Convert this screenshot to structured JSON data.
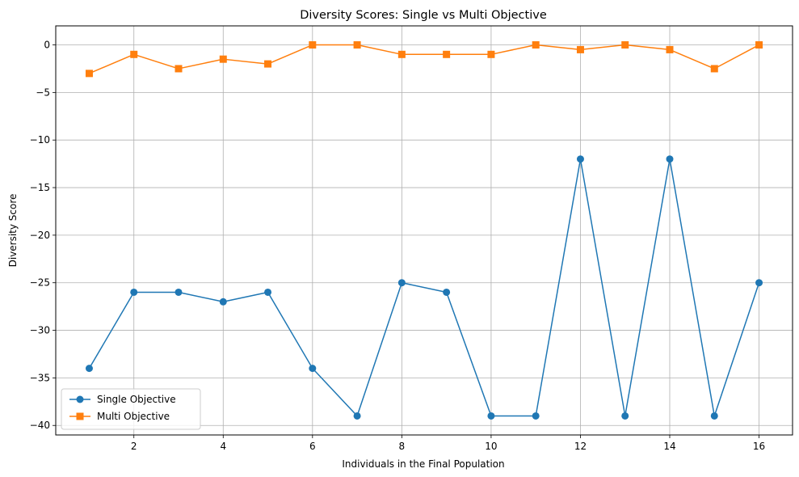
{
  "chart_data": {
    "type": "line",
    "title": "Diversity Scores: Single vs Multi Objective",
    "xlabel": "Individuals in the Final Population",
    "ylabel": "Diversity Score",
    "x": [
      1,
      2,
      3,
      4,
      5,
      6,
      7,
      8,
      9,
      10,
      11,
      12,
      13,
      14,
      15,
      16
    ],
    "xlim": [
      0.25,
      16.75
    ],
    "ylim": [
      -41,
      2
    ],
    "xticks": [
      2,
      4,
      6,
      8,
      10,
      12,
      14,
      16
    ],
    "yticks": [
      0,
      -5,
      -10,
      -15,
      -20,
      -25,
      -30,
      -35,
      -40
    ],
    "xtick_labels": [
      "2",
      "4",
      "6",
      "8",
      "10",
      "12",
      "14",
      "16"
    ],
    "ytick_labels": [
      "0",
      "−5",
      "−10",
      "−15",
      "−20",
      "−25",
      "−30",
      "−35",
      "−40"
    ],
    "grid": true,
    "legend_position": "lower-left",
    "series": [
      {
        "name": "Single Objective",
        "color": "#1f77b4",
        "marker": "circle",
        "values": [
          -34,
          -26,
          -26,
          -27,
          -26,
          -34,
          -39,
          -25,
          -26,
          -39,
          -39,
          -12,
          -39,
          -12,
          -39,
          -25
        ]
      },
      {
        "name": "Multi Objective",
        "color": "#ff7f0e",
        "marker": "square",
        "values": [
          -3,
          -1,
          -2.5,
          -1.5,
          -2,
          0,
          0,
          -1,
          -1,
          -1,
          0,
          -0.5,
          0,
          -0.5,
          -2.5,
          0
        ]
      }
    ]
  }
}
